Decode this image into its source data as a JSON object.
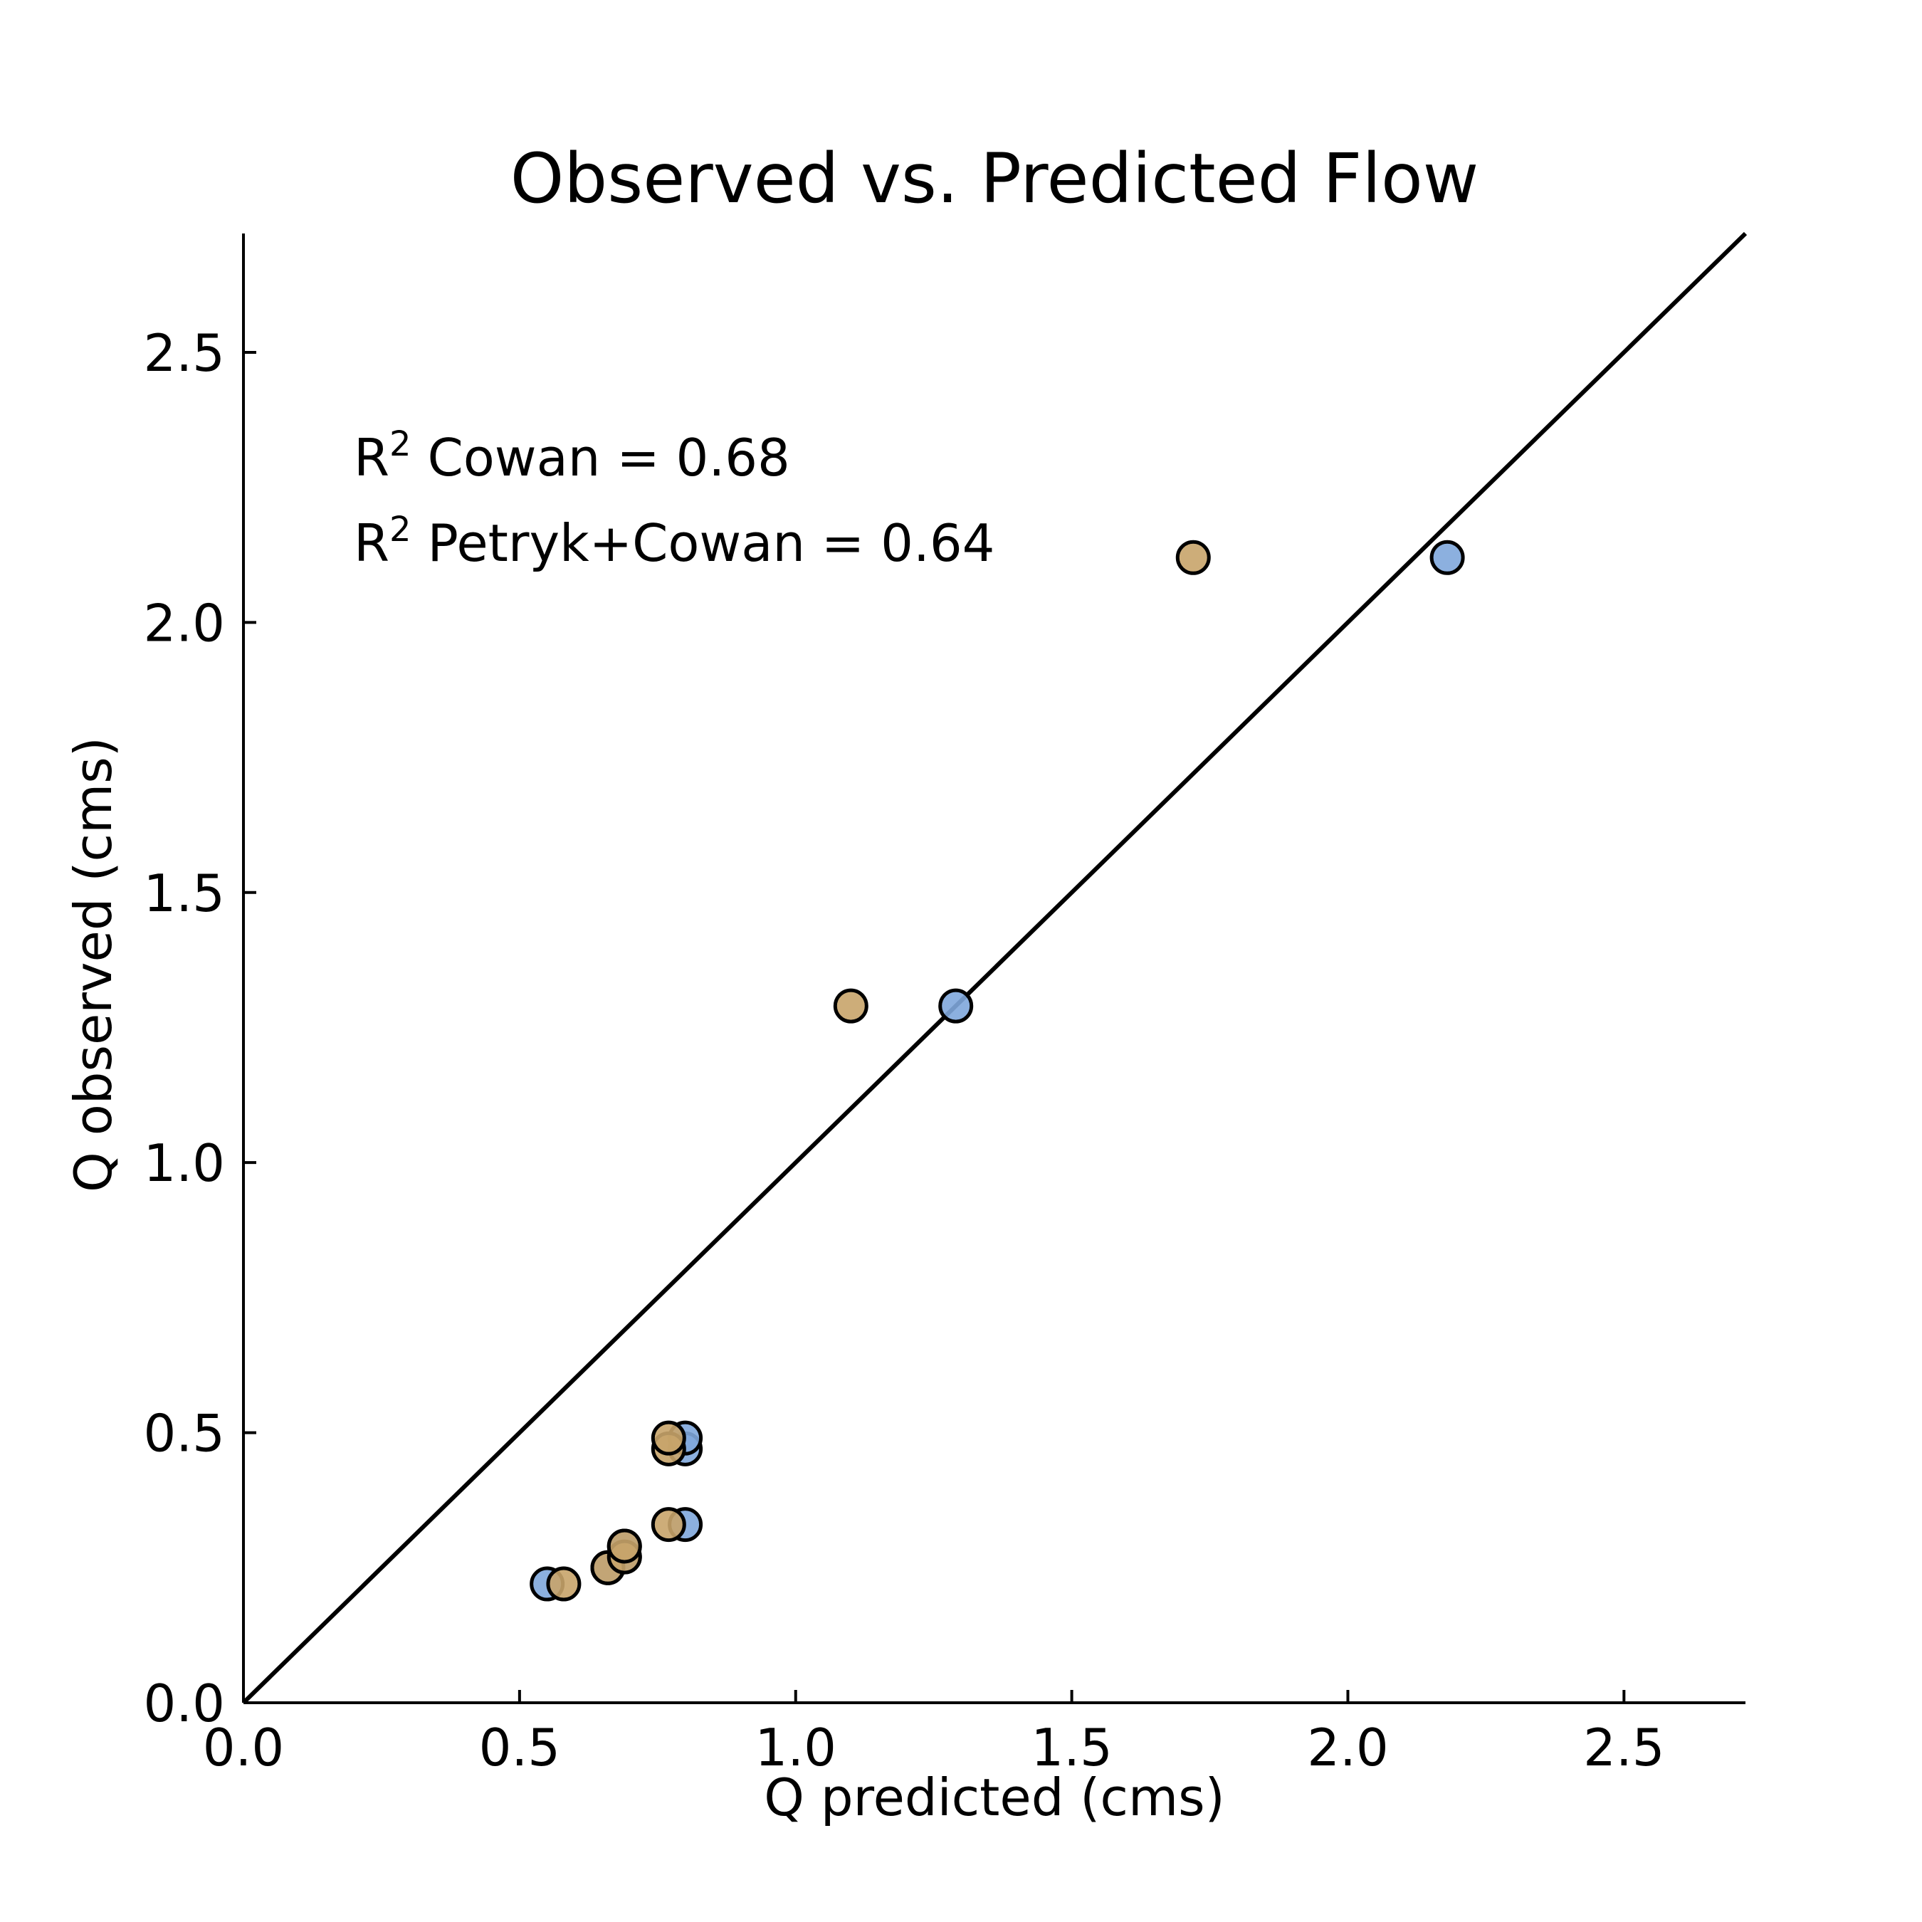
{
  "chart_data": {
    "type": "scatter",
    "title": "Observed vs. Predicted Flow",
    "xlabel": "Q predicted (cms)",
    "ylabel": "Q observed (cms)",
    "xlim": [
      0,
      2.72
    ],
    "ylim": [
      0,
      2.72
    ],
    "xticks": [
      {
        "value": 0.0,
        "label": "0.0"
      },
      {
        "value": 0.5,
        "label": "0.5"
      },
      {
        "value": 1.0,
        "label": "1.0"
      },
      {
        "value": 1.5,
        "label": "1.5"
      },
      {
        "value": 2.0,
        "label": "2.0"
      },
      {
        "value": 2.5,
        "label": "2.5"
      }
    ],
    "yticks": [
      {
        "value": 0.0,
        "label": "0.0"
      },
      {
        "value": 0.5,
        "label": "0.5"
      },
      {
        "value": 1.0,
        "label": "1.0"
      },
      {
        "value": 1.5,
        "label": "1.5"
      },
      {
        "value": 2.0,
        "label": "2.0"
      },
      {
        "value": 2.5,
        "label": "2.5"
      }
    ],
    "grid": false,
    "reference_line": {
      "type": "1:1",
      "from": [
        0,
        0
      ],
      "to": [
        2.72,
        2.72
      ],
      "color": "#000000"
    },
    "annotations": [
      {
        "prefix": "R",
        "sup": "2",
        "text": " Cowan = 0.68",
        "color": "#2e6bbf"
      },
      {
        "prefix": "R",
        "sup": "2",
        "text": " Petryk+Cowan = 0.64",
        "color": "#b08432"
      }
    ],
    "series": [
      {
        "color": "#7fa7dc",
        "points": [
          {
            "x": 0.55,
            "y": 0.22
          },
          {
            "x": 0.66,
            "y": 0.25
          },
          {
            "x": 0.69,
            "y": 0.27
          },
          {
            "x": 0.69,
            "y": 0.29
          },
          {
            "x": 0.8,
            "y": 0.33
          },
          {
            "x": 0.8,
            "y": 0.47
          },
          {
            "x": 0.8,
            "y": 0.49
          },
          {
            "x": 1.29,
            "y": 1.29
          },
          {
            "x": 2.18,
            "y": 2.12
          }
        ]
      },
      {
        "color": "#c8a46a",
        "points": [
          {
            "x": 0.58,
            "y": 0.22
          },
          {
            "x": 0.66,
            "y": 0.25
          },
          {
            "x": 0.69,
            "y": 0.27
          },
          {
            "x": 0.69,
            "y": 0.29
          },
          {
            "x": 0.77,
            "y": 0.33
          },
          {
            "x": 0.77,
            "y": 0.47
          },
          {
            "x": 0.77,
            "y": 0.49
          },
          {
            "x": 1.1,
            "y": 1.29
          },
          {
            "x": 1.72,
            "y": 2.12
          }
        ]
      }
    ]
  }
}
